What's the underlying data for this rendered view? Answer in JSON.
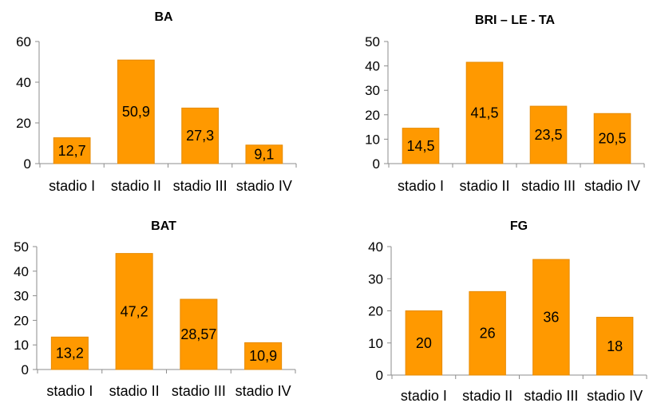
{
  "colors": {
    "bar": "#FF9900",
    "bar_edge": "#E68A00",
    "axis": "#8c8c8c"
  },
  "chart_data": [
    {
      "type": "bar",
      "title": "BA",
      "categories": [
        "stadio I",
        "stadio II",
        "stadio III",
        "stadio IV"
      ],
      "values": [
        12.7,
        50.9,
        27.3,
        9.1
      ],
      "data_labels": [
        "12,7",
        "50,9",
        "27,3",
        "9,1"
      ],
      "ylim": [
        0,
        60
      ],
      "yticks": [
        0,
        20,
        40,
        60
      ],
      "grid": false,
      "xlabel": "",
      "ylabel": ""
    },
    {
      "type": "bar",
      "title": "BRI – LE - TA",
      "categories": [
        "stadio I",
        "stadio II",
        "stadio III",
        "stadio IV"
      ],
      "values": [
        14.5,
        41.5,
        23.5,
        20.5
      ],
      "data_labels": [
        "14,5",
        "41,5",
        "23,5",
        "20,5"
      ],
      "ylim": [
        0,
        50
      ],
      "yticks": [
        0,
        10,
        20,
        30,
        40,
        50
      ],
      "grid": false,
      "xlabel": "",
      "ylabel": ""
    },
    {
      "type": "bar",
      "title": "BAT",
      "categories": [
        "stadio I",
        "stadio II",
        "stadio III",
        "stadio IV"
      ],
      "values": [
        13.2,
        47.2,
        28.57,
        10.9
      ],
      "data_labels": [
        "13,2",
        "47,2",
        "28,57",
        "10,9"
      ],
      "ylim": [
        0,
        50
      ],
      "yticks": [
        0,
        10,
        20,
        30,
        40,
        50
      ],
      "grid": false,
      "xlabel": "",
      "ylabel": ""
    },
    {
      "type": "bar",
      "title": "FG",
      "categories": [
        "stadio I",
        "stadio II",
        "stadio III",
        "stadio IV"
      ],
      "values": [
        20,
        26,
        36,
        18
      ],
      "data_labels": [
        "20",
        "26",
        "36",
        "18"
      ],
      "ylim": [
        0,
        40
      ],
      "yticks": [
        0,
        10,
        20,
        30,
        40
      ],
      "grid": false,
      "xlabel": "",
      "ylabel": ""
    }
  ]
}
